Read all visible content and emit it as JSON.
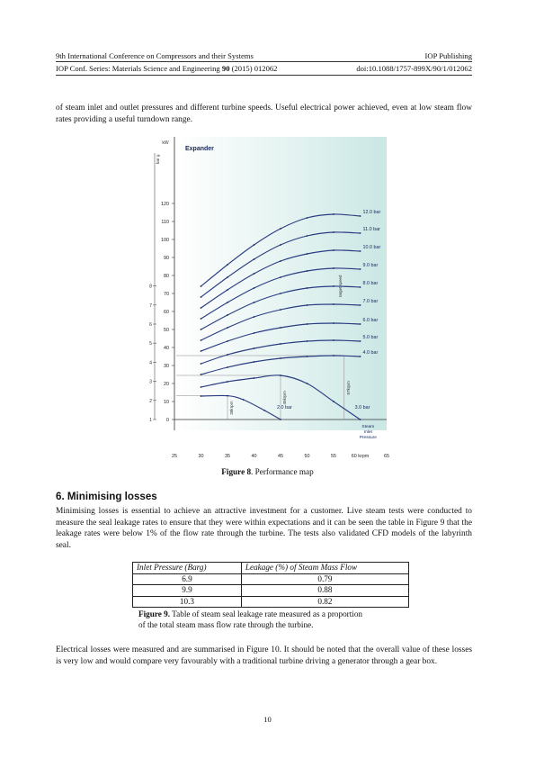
{
  "header": {
    "conference": "9th International Conference on Compressors and their Systems",
    "publisher": "IOP Publishing",
    "series_prefix": "IOP Conf. Series: Materials Science and Engineering",
    "volume": "90",
    "series_suffix": "(2015) 012062",
    "doi": "doi:10.1088/1757-899X/90/1/012062"
  },
  "intro_paragraph": "of steam inlet and outlet pressures and different turbine speeds. Useful electrical power achieved, even at low steam flow rates providing a useful turndown range.",
  "figure8": {
    "caption_label": "Figure 8",
    "caption_text": ". Performance map"
  },
  "chart_data": {
    "type": "line",
    "title": "Expander",
    "ylabel": "kW",
    "ylabel_secondary": "bar g",
    "xlabel": "krpm",
    "xlim": [
      25,
      65
    ],
    "ylim": [
      0,
      120
    ],
    "ylim_secondary": [
      1,
      9
    ],
    "x_ticks": [
      "25",
      "30",
      "35",
      "40",
      "45",
      "50",
      "55",
      "60",
      "65"
    ],
    "y_ticks": [
      "0",
      "10",
      "20",
      "30",
      "40",
      "50",
      "60",
      "70",
      "80",
      "90",
      "100",
      "110",
      "120"
    ],
    "y2_ticks": [
      "1",
      "2",
      "3",
      "4",
      "5",
      "6",
      "7",
      "8"
    ],
    "grid": false,
    "annotations": [
      "35krpm",
      "45krpm",
      "57krpm",
      "target speed"
    ],
    "legend_title": "Steam Inlet Pressure",
    "series": [
      {
        "name": "2.0 bar",
        "x": [
          30,
          35,
          38,
          42,
          45
        ],
        "y": [
          13,
          13.2,
          11,
          5,
          0
        ]
      },
      {
        "name": "3.0 bar",
        "x": [
          30,
          35,
          40,
          45,
          50,
          55,
          60
        ],
        "y": [
          18,
          21,
          23,
          24.5,
          20,
          10,
          0
        ]
      },
      {
        "name": "4.0 bar",
        "x": [
          30,
          35,
          40,
          45,
          50,
          55,
          60
        ],
        "y": [
          25,
          29,
          32,
          34,
          35,
          35.5,
          35
        ]
      },
      {
        "name": "5.0 bar",
        "x": [
          30,
          35,
          40,
          45,
          50,
          55,
          60
        ],
        "y": [
          31,
          36,
          39.5,
          42,
          43.5,
          44,
          43.5
        ]
      },
      {
        "name": "6.0 bar",
        "x": [
          30,
          35,
          40,
          45,
          50,
          55,
          60
        ],
        "y": [
          38,
          43.5,
          48,
          51,
          53,
          53.5,
          53
        ]
      },
      {
        "name": "7.0 bar",
        "x": [
          30,
          35,
          40,
          45,
          50,
          55,
          60
        ],
        "y": [
          44,
          51,
          57,
          61,
          63.5,
          64,
          63.5
        ]
      },
      {
        "name": "8.0 bar",
        "x": [
          30,
          35,
          40,
          45,
          50,
          55,
          60
        ],
        "y": [
          50,
          58,
          65,
          70,
          73,
          74,
          73.5
        ]
      },
      {
        "name": "9.0 bar",
        "x": [
          30,
          35,
          40,
          45,
          50,
          55,
          60
        ],
        "y": [
          56,
          65,
          73,
          79,
          82.5,
          84,
          83.5
        ]
      },
      {
        "name": "10.0 bar",
        "x": [
          30,
          35,
          40,
          45,
          50,
          55,
          60
        ],
        "y": [
          62,
          72,
          81,
          88,
          92,
          94,
          93.5
        ]
      },
      {
        "name": "11.0 bar",
        "x": [
          30,
          35,
          40,
          45,
          50,
          55,
          60
        ],
        "y": [
          68,
          79,
          89,
          97,
          102,
          104,
          103.5
        ]
      },
      {
        "name": "12.0 bar",
        "x": [
          30,
          35,
          40,
          45,
          50,
          55,
          60
        ],
        "y": [
          74,
          86,
          97,
          106,
          112,
          114,
          113
        ]
      }
    ]
  },
  "section6": {
    "heading": "6. Minimising losses",
    "paragraph": "Minimising losses is essential to achieve an attractive investment for a customer. Live steam tests were conducted to measure the seal leakage rates to ensure that they were within expectations and it can be seen the table in Figure 9 that the leakage rates were below 1% of the flow rate through the turbine. The tests also validated CFD models of the labyrinth seal."
  },
  "table": {
    "headers": [
      "Inlet Pressure (Barg)",
      "Leakage (%) of Steam Mass Flow"
    ],
    "rows": [
      [
        "6.9",
        "0.79"
      ],
      [
        "9.9",
        "0.88"
      ],
      [
        "10.3",
        "0.82"
      ]
    ]
  },
  "figure9": {
    "caption_label": "Figure 9.",
    "caption_line1": " Table of steam seal leakage rate measured as a proportion",
    "caption_line2": "of the total steam mass flow rate through the turbine."
  },
  "closing_paragraph": "Electrical losses were measured and are summarised in Figure 10. It should be noted that the overall value of these losses is very low and would compare very favourably with a traditional turbine driving a generator through a gear box.",
  "page_number": "10"
}
